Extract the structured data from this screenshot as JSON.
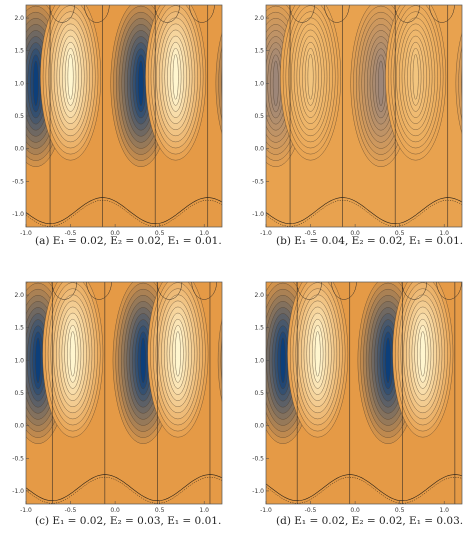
{
  "panels": [
    {
      "caption": "(a) E₁ = 0.02, E₂ = 0.02, E₁ = 0.01.",
      "chart_data": {
        "type": "contour",
        "xlim": [
          -1.0,
          1.2
        ],
        "ylim": [
          -1.2,
          2.2
        ],
        "x_ticks": [
          "-1.0",
          "-0.5",
          "0.0",
          "0.5",
          "1.0"
        ],
        "y_ticks": [
          "-1.0",
          "-0.5",
          "0.0",
          "0.5",
          "1.0",
          "1.5",
          "2.0"
        ],
        "x_tick_values": [
          -1.0,
          -0.5,
          0.0,
          0.5,
          1.0
        ],
        "y_tick_values": [
          -1.0,
          -0.5,
          0.0,
          0.5,
          1.0,
          1.5,
          2.0
        ],
        "params": {
          "E1": 0.02,
          "E2": 0.02,
          "E3": 0.01
        },
        "color_low": "#0d3f7a",
        "color_mid": "#e59a46",
        "color_high": "#fff6cf",
        "vertical_lines": [
          -0.73,
          -0.14,
          0.45,
          1.04
        ]
      }
    },
    {
      "caption": "(b) E₁ = 0.04, E₂ = 0.02, E₁ = 0.01.",
      "chart_data": {
        "type": "contour",
        "xlim": [
          -1.0,
          1.2
        ],
        "ylim": [
          -1.2,
          2.2
        ],
        "x_ticks": [
          "-1.0",
          "-0.5",
          "0.0",
          "0.5",
          "1.0"
        ],
        "y_ticks": [
          "-1.0",
          "-0.5",
          "0.0",
          "0.5",
          "1.0",
          "1.5",
          "2.0"
        ],
        "x_tick_values": [
          -1.0,
          -0.5,
          0.0,
          0.5,
          1.0
        ],
        "y_tick_values": [
          -1.0,
          -0.5,
          0.0,
          0.5,
          1.0,
          1.5,
          2.0
        ],
        "params": {
          "E1": 0.04,
          "E2": 0.02,
          "E3": 0.01
        },
        "color_low": "#5f6f9a",
        "color_mid": "#e8a24f",
        "color_high": "#fbe1a6",
        "vertical_lines": [
          -0.73,
          -0.14,
          0.45,
          1.04
        ]
      }
    },
    {
      "caption": "(c) E₁ = 0.02, E₂ = 0.03, E₁ = 0.01.",
      "chart_data": {
        "type": "contour",
        "xlim": [
          -1.0,
          1.2
        ],
        "ylim": [
          -1.2,
          2.2
        ],
        "x_ticks": [
          "-1.0",
          "-0.5",
          "0.0",
          "0.5",
          "1.0"
        ],
        "y_ticks": [
          "-1.0",
          "-0.5",
          "0.0",
          "0.5",
          "1.0",
          "1.5",
          "2.0"
        ],
        "x_tick_values": [
          -1.0,
          -0.5,
          0.0,
          0.5,
          1.0
        ],
        "y_tick_values": [
          -1.0,
          -0.5,
          0.0,
          0.5,
          1.0,
          1.5,
          2.0
        ],
        "params": {
          "E1": 0.02,
          "E2": 0.03,
          "E3": 0.01
        },
        "color_low": "#0d3f7a",
        "color_mid": "#e59a46",
        "color_high": "#fff6cf",
        "vertical_lines": [
          -0.73,
          -0.14,
          0.45,
          1.04
        ]
      }
    },
    {
      "caption": "(d) E₁ = 0.02, E₂ = 0.02, E₁ = 0.03.",
      "chart_data": {
        "type": "contour",
        "xlim": [
          -1.0,
          1.2
        ],
        "ylim": [
          -1.2,
          2.2
        ],
        "x_ticks": [
          "-1.0",
          "-0.5",
          "0.0",
          "0.5",
          "1.0"
        ],
        "y_ticks": [
          "-1.0",
          "-0.5",
          "0.0",
          "0.5",
          "1.0",
          "1.5",
          "2.0"
        ],
        "x_tick_values": [
          -1.0,
          -0.5,
          0.0,
          0.5,
          1.0
        ],
        "y_tick_values": [
          -1.0,
          -0.5,
          0.0,
          0.5,
          1.0,
          1.5,
          2.0
        ],
        "params": {
          "E1": 0.02,
          "E2": 0.02,
          "E3": 0.03
        },
        "color_low": "#0d3f7a",
        "color_mid": "#e59a46",
        "color_high": "#fff6cf",
        "vertical_lines": [
          -0.73,
          -0.14,
          0.45,
          1.04
        ]
      }
    }
  ]
}
